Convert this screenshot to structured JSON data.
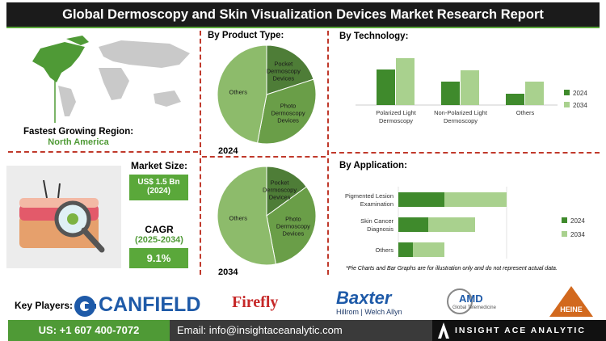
{
  "header": {
    "title": "Global Dermoscopy and Skin Visualization Devices Market Research Report"
  },
  "region": {
    "label": "Fastest Growing Region:",
    "value": "North America"
  },
  "market_size": {
    "label": "Market Size:",
    "value": "US$ 1.5 Bn",
    "year": "(2024)"
  },
  "cagr": {
    "label": "CAGR",
    "period": "(2025-2034)",
    "value": "9.1%"
  },
  "product_section": {
    "title": "By Product Type:"
  },
  "chart_data": [
    {
      "type": "pie",
      "title": "2024",
      "categories": [
        "Pocket Dermoscopy Devices",
        "Photo Dermoscopy Devices",
        "Others"
      ],
      "values": [
        20,
        33,
        47
      ],
      "colors": [
        "#4e7d37",
        "#6a9e48",
        "#8dbb6b"
      ]
    },
    {
      "type": "pie",
      "title": "2034",
      "categories": [
        "Pocket Dermoscopy Devices",
        "Photo Dermoscopy Devices",
        "Others"
      ],
      "values": [
        15,
        32,
        53
      ],
      "colors": [
        "#4e7d37",
        "#6a9e48",
        "#8dbb6b"
      ]
    },
    {
      "type": "bar",
      "title": "By Technology:",
      "categories": [
        "Polarized Light Dermoscopy",
        "Non-Polarized Light Dermoscopy",
        "Others"
      ],
      "series": [
        {
          "name": "2024",
          "color": "#3f8a2c",
          "values": [
            44,
            29,
            14
          ]
        },
        {
          "name": "2034",
          "color": "#a9d18e",
          "values": [
            58,
            43,
            29
          ]
        }
      ]
    },
    {
      "type": "hbar",
      "stacked": true,
      "title": "By Application:",
      "categories": [
        "Pigmented Lesion Examination",
        "Skin Cancer Diagnosis",
        "Others"
      ],
      "series": [
        {
          "name": "2024",
          "color": "#3f8a2c",
          "values": [
            57,
            37,
            18
          ]
        },
        {
          "name": "2034",
          "color": "#a9d18e",
          "values": [
            77,
            58,
            39
          ]
        }
      ]
    }
  ],
  "note": "*Pie Charts and Bar Graphs are for illustration only and do not represent actual data.",
  "key_players": {
    "label": "Key Players:",
    "logos": [
      "CANFIELD",
      "Firefly",
      "Baxter",
      "Hillrom | Welch Allyn",
      "AMD",
      "Global Telemedicine",
      "HEINE"
    ]
  },
  "footer": {
    "phone": "US: +1 607 400-7072",
    "email": "Email: info@insightaceanalytic.com",
    "brand": "INSIGHT ACE ANALYTIC"
  }
}
